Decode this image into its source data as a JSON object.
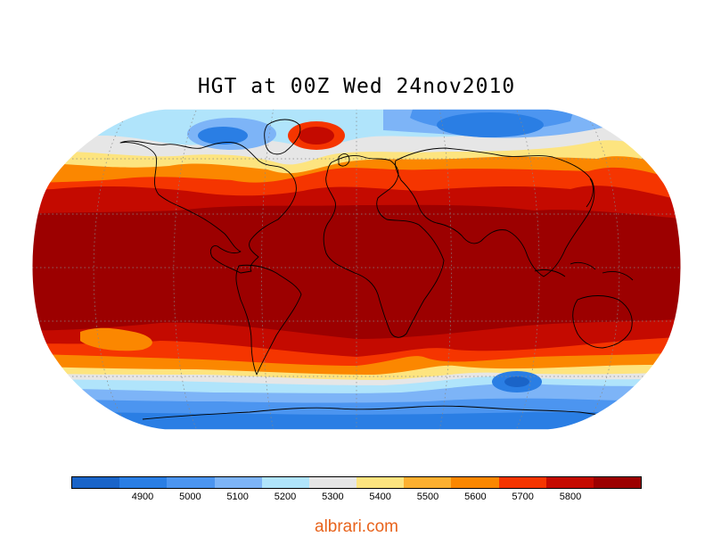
{
  "title": "HGT at 00Z Wed 24nov2010",
  "colorbar": {
    "colors": [
      "#1a64c8",
      "#2a7ee4",
      "#4c95f0",
      "#7db4f7",
      "#b0e4fb",
      "#e6e6e6",
      "#fde47f",
      "#fdb030",
      "#fb8700",
      "#f53500",
      "#c40a00",
      "#9c0000"
    ],
    "labels": [
      "4900",
      "5000",
      "5100",
      "5200",
      "5300",
      "5400",
      "5500",
      "5600",
      "5700",
      "5800"
    ]
  },
  "watermark": {
    "text": "albrari.com",
    "color": "#e8631c"
  }
}
